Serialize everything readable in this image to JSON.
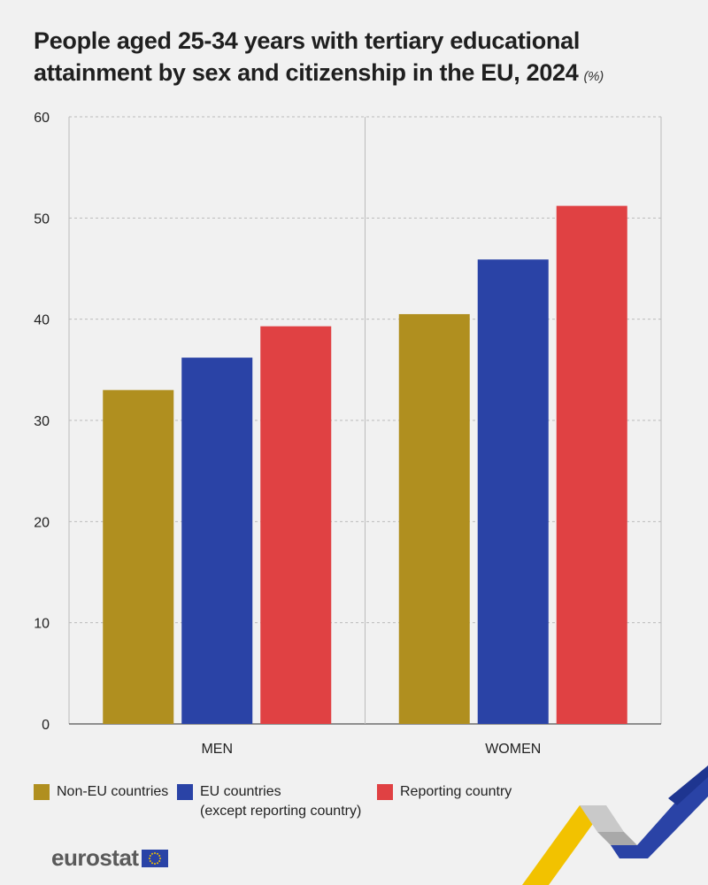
{
  "title": "People aged 25-34 years with tertiary educational attainment by sex and citizenship in the EU, 2024",
  "unit": "(%)",
  "colors": {
    "non_eu": "#b08f1f",
    "eu": "#2a43a6",
    "reporting": "#e04143",
    "grid": "#bcbcbc",
    "axis": "#555555"
  },
  "chart_data": {
    "type": "bar",
    "categories": [
      "MEN",
      "WOMEN"
    ],
    "series": [
      {
        "name": "Non-EU countries",
        "values": [
          33.0,
          40.5
        ]
      },
      {
        "name": "EU countries\n(except reporting country)",
        "values": [
          36.2,
          45.9
        ]
      },
      {
        "name": "Reporting country",
        "values": [
          39.3,
          51.2
        ]
      }
    ],
    "ylim": [
      0,
      60
    ],
    "yticks": [
      0,
      10,
      20,
      30,
      40,
      50,
      60
    ],
    "grid": true,
    "legend": "bottom"
  },
  "legend": [
    {
      "label": "Non-EU countries",
      "color_key": "non_eu"
    },
    {
      "label": "EU countries\n(except reporting country)",
      "color_key": "eu"
    },
    {
      "label": "Reporting country",
      "color_key": "reporting"
    }
  ],
  "footer": {
    "logo_text": "eurostat",
    "flag_icon": "eu-flag-icon"
  }
}
